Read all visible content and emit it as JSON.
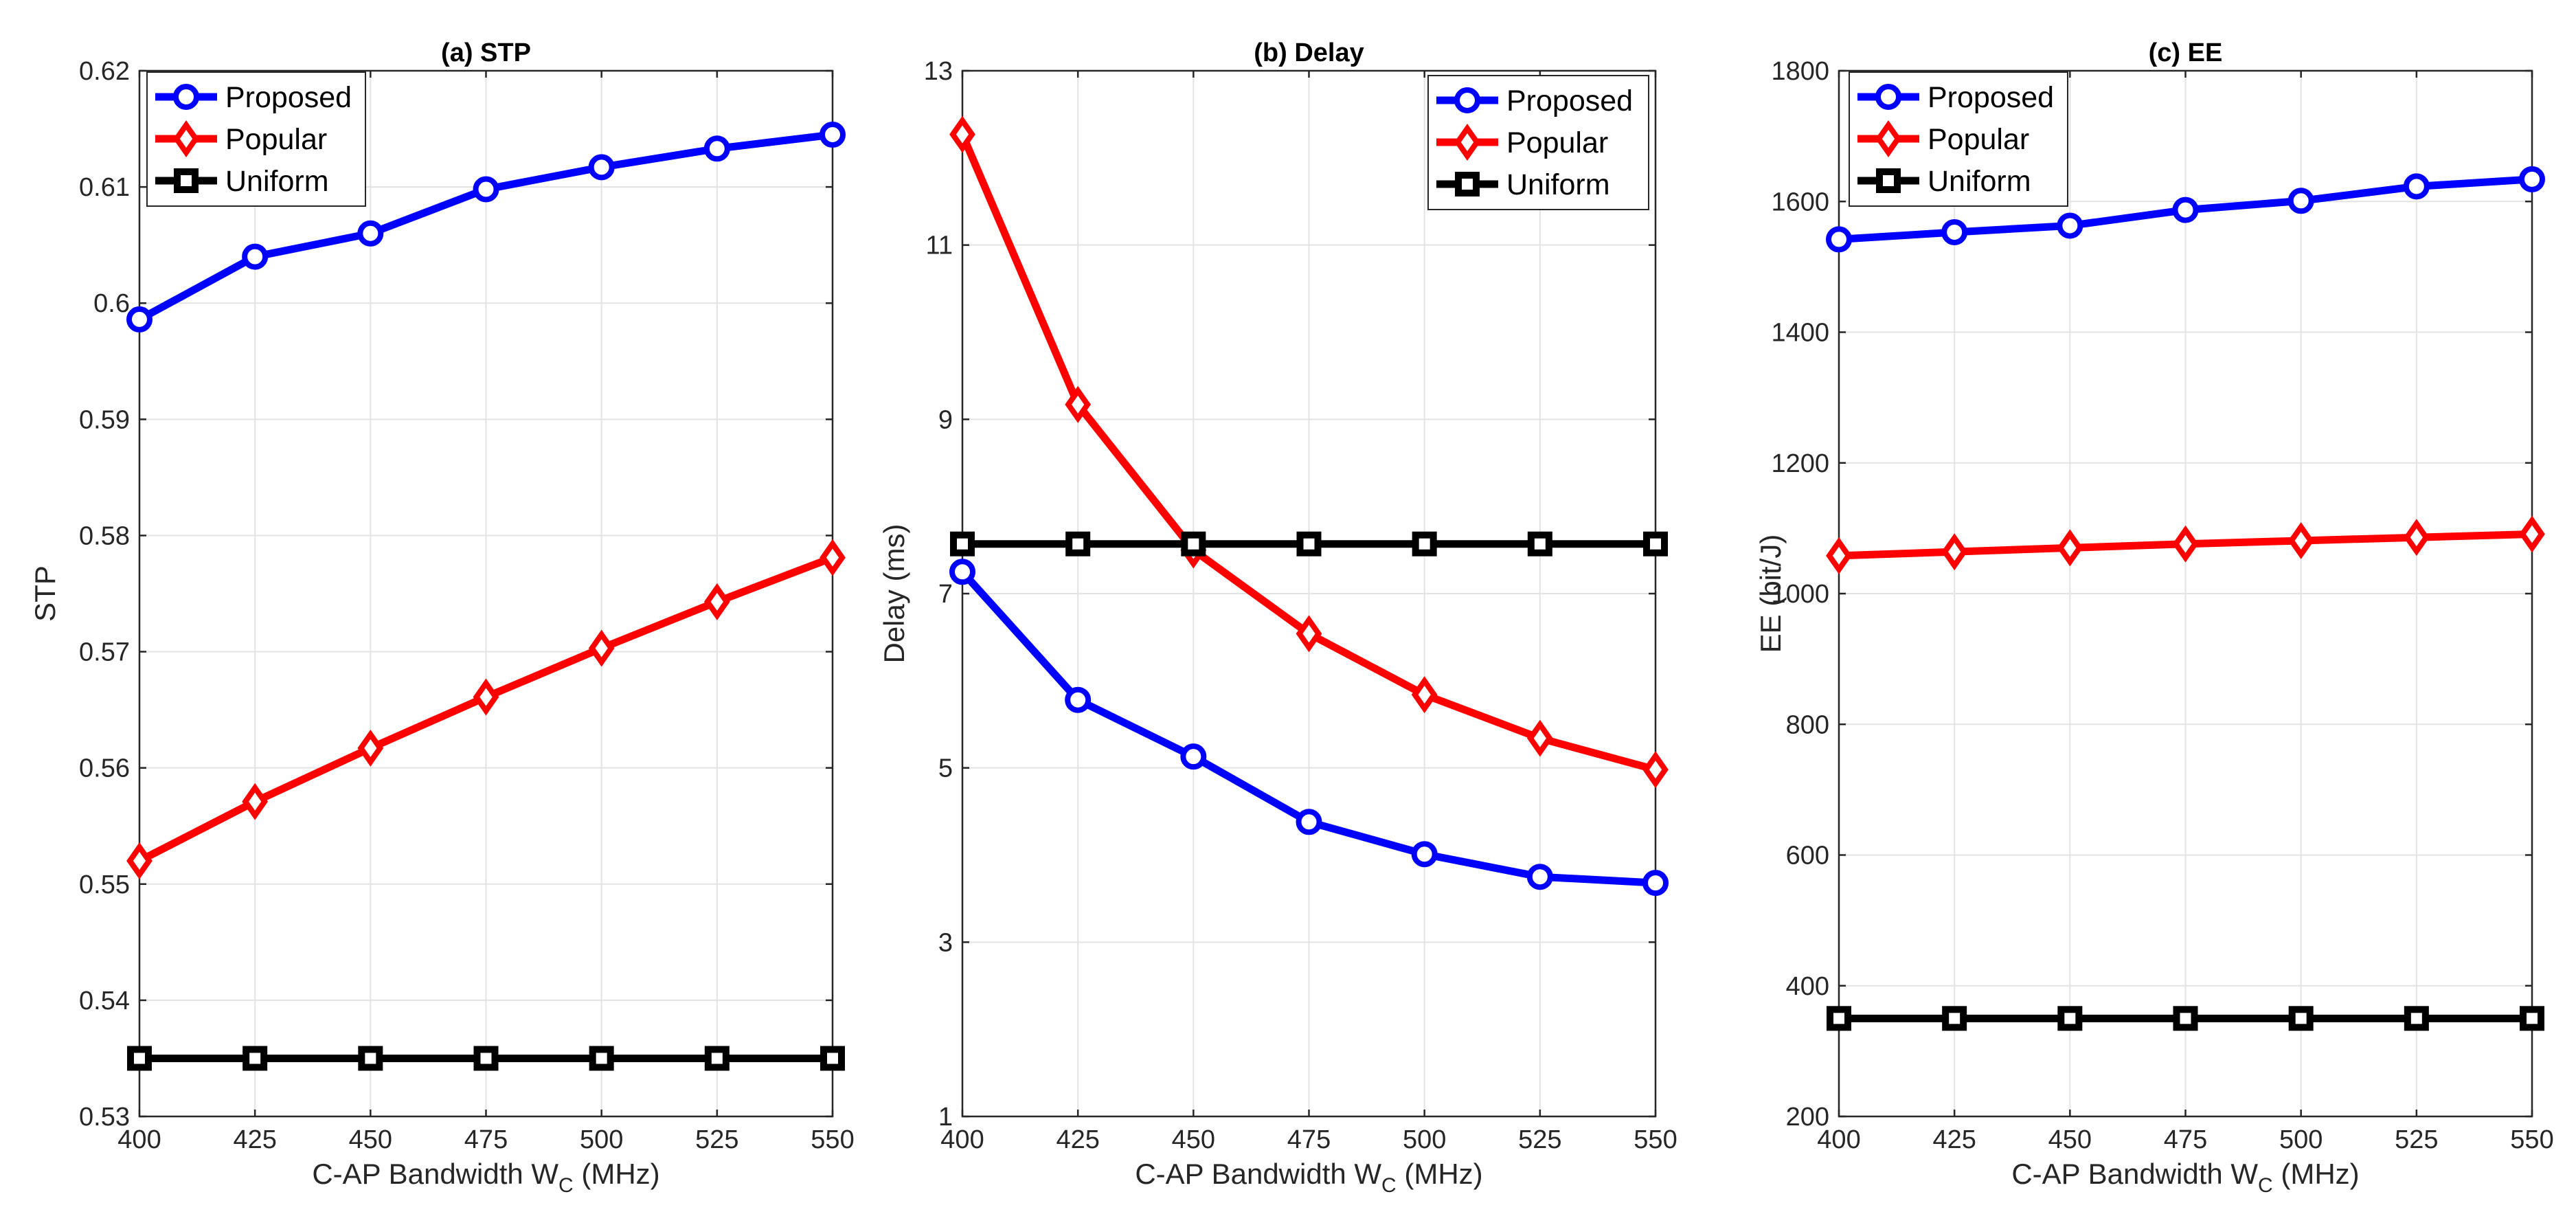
{
  "figure": {
    "name": "three-panel-line-figure"
  },
  "chart_data": [
    {
      "type": "line",
      "title": "(a) STP",
      "xlabel": "C-AP Bandwidth W",
      "xlabel_sub": "C",
      "xlabel_unit": " (MHz)",
      "ylabel": "STP",
      "xlim": [
        400,
        550
      ],
      "ylim": [
        0.53,
        0.62
      ],
      "xticks": [
        400,
        425,
        450,
        475,
        500,
        525,
        550
      ],
      "yticks": [
        0.53,
        0.54,
        0.55,
        0.56,
        0.57,
        0.58,
        0.59,
        0.6,
        0.61,
        0.62
      ],
      "ytick_labels": [
        "0.53",
        "0.54",
        "0.55",
        "0.56",
        "0.57",
        "0.58",
        "0.59",
        "0.6",
        "0.61",
        "0.62"
      ],
      "grid": true,
      "legend_position": "top-left",
      "x": [
        400,
        425,
        450,
        475,
        500,
        525,
        550
      ],
      "series": [
        {
          "name": "Proposed",
          "color": "#0000ff",
          "marker": "circle",
          "values": [
            0.5986,
            0.604,
            0.606,
            0.6098,
            0.6117,
            0.6133,
            0.6145
          ]
        },
        {
          "name": "Popular",
          "color": "#ff0000",
          "marker": "diamond",
          "values": [
            0.552,
            0.5571,
            0.5617,
            0.5661,
            0.5703,
            0.5743,
            0.5781
          ]
        },
        {
          "name": "Uniform",
          "color": "#000000",
          "marker": "square",
          "values": [
            0.535,
            0.535,
            0.535,
            0.535,
            0.535,
            0.535,
            0.535
          ]
        }
      ]
    },
    {
      "type": "line",
      "title": "(b) Delay",
      "xlabel": "C-AP Bandwidth W",
      "xlabel_sub": "C",
      "xlabel_unit": " (MHz)",
      "ylabel": "Delay (ms)",
      "xlim": [
        400,
        550
      ],
      "ylim": [
        1,
        13
      ],
      "xticks": [
        400,
        425,
        450,
        475,
        500,
        525,
        550
      ],
      "yticks": [
        1,
        3,
        5,
        7,
        9,
        11,
        13
      ],
      "ytick_labels": [
        "1",
        "3",
        "5",
        "7",
        "9",
        "11",
        "13"
      ],
      "grid": true,
      "legend_position": "top-right",
      "x": [
        400,
        425,
        450,
        475,
        500,
        525,
        550
      ],
      "series": [
        {
          "name": "Proposed",
          "color": "#0000ff",
          "marker": "circle",
          "values": [
            7.25,
            5.78,
            5.13,
            4.38,
            4.01,
            3.75,
            3.68
          ]
        },
        {
          "name": "Popular",
          "color": "#ff0000",
          "marker": "diamond",
          "values": [
            12.27,
            9.17,
            7.5,
            6.54,
            5.84,
            5.34,
            4.98
          ]
        },
        {
          "name": "Uniform",
          "color": "#000000",
          "marker": "square",
          "values": [
            7.57,
            7.57,
            7.57,
            7.57,
            7.57,
            7.57,
            7.57
          ]
        }
      ]
    },
    {
      "type": "line",
      "title": "(c) EE",
      "xlabel": "C-AP Bandwidth W",
      "xlabel_sub": "C",
      "xlabel_unit": " (MHz)",
      "ylabel": "EE (bit/J)",
      "xlim": [
        400,
        550
      ],
      "ylim": [
        200,
        1800
      ],
      "xticks": [
        400,
        425,
        450,
        475,
        500,
        525,
        550
      ],
      "yticks": [
        200,
        400,
        600,
        800,
        1000,
        1200,
        1400,
        1600,
        1800
      ],
      "ytick_labels": [
        "200",
        "400",
        "600",
        "800",
        "1000",
        "1200",
        "1400",
        "1600",
        "1800"
      ],
      "grid": true,
      "legend_position": "top-left",
      "x": [
        400,
        425,
        450,
        475,
        500,
        525,
        550
      ],
      "series": [
        {
          "name": "Proposed",
          "color": "#0000ff",
          "marker": "circle",
          "values": [
            1542,
            1553,
            1563,
            1587,
            1601,
            1623,
            1634
          ]
        },
        {
          "name": "Popular",
          "color": "#ff0000",
          "marker": "diamond",
          "values": [
            1058,
            1064,
            1070,
            1076,
            1081,
            1086,
            1091
          ]
        },
        {
          "name": "Uniform",
          "color": "#000000",
          "marker": "square",
          "values": [
            350,
            350,
            350,
            350,
            350,
            350,
            350
          ]
        }
      ]
    }
  ]
}
